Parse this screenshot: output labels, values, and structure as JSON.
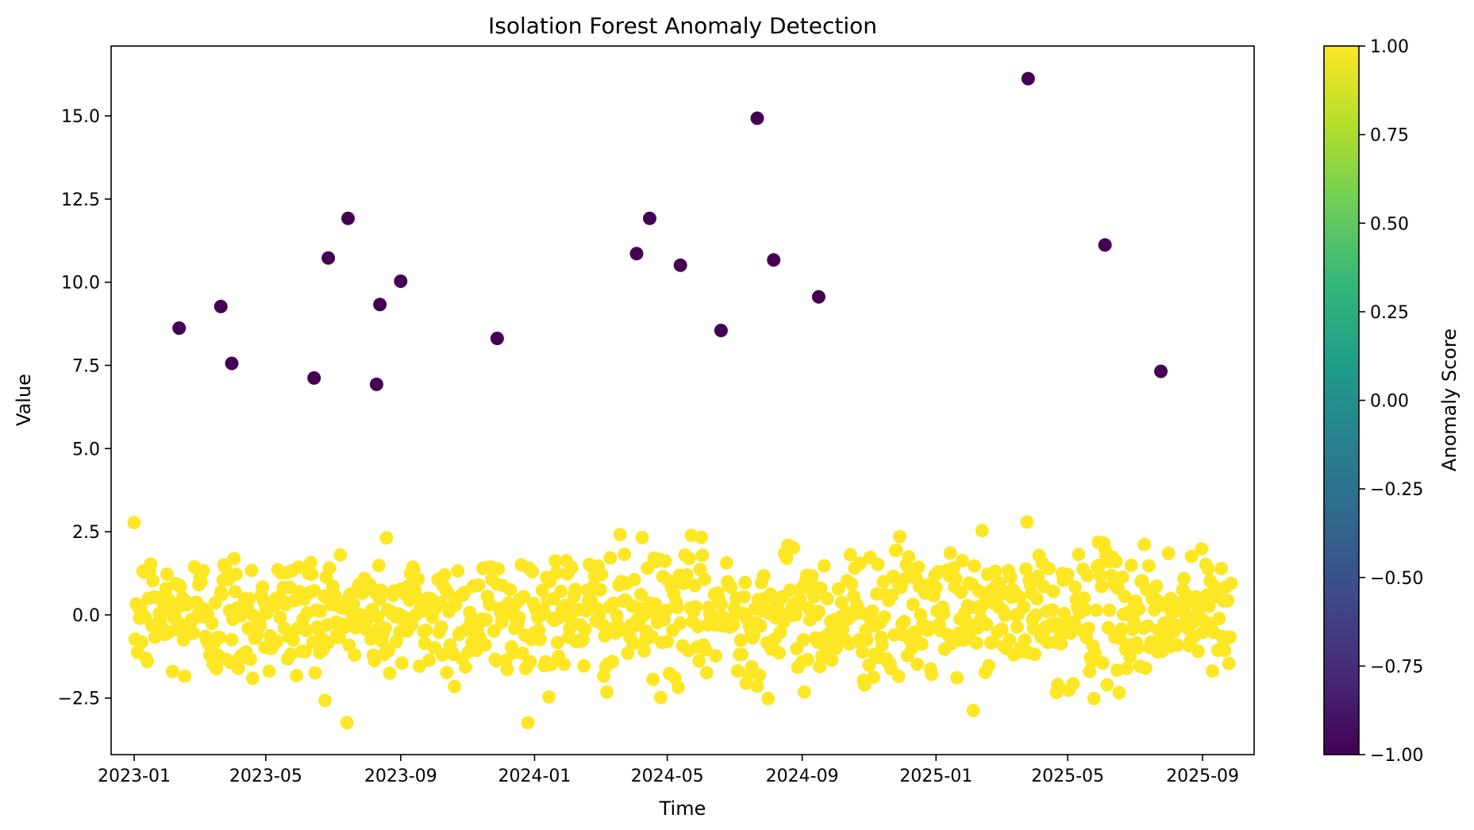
{
  "chart_data": {
    "type": "scatter",
    "title": "Isolation Forest Anomaly Detection",
    "xlabel": "Time",
    "ylabel": "Value",
    "x_tick_labels": [
      "2023-01",
      "2023-05",
      "2023-09",
      "2024-01",
      "2024-05",
      "2024-09",
      "2025-01",
      "2025-05",
      "2025-09"
    ],
    "x_ticks": [
      "2023-01-01",
      "2023-05-01",
      "2023-09-01",
      "2024-01-01",
      "2024-05-01",
      "2024-09-01",
      "2025-01-01",
      "2025-05-01",
      "2025-09-01"
    ],
    "x_range": [
      "2022-12-11",
      "2025-10-18"
    ],
    "ylim": [
      -4.2,
      17.1
    ],
    "y_ticks": [
      -2.5,
      0.0,
      2.5,
      5.0,
      7.5,
      10.0,
      12.5,
      15.0
    ],
    "y_tick_labels": [
      "−2.5",
      "0.0",
      "2.5",
      "5.0",
      "7.5",
      "10.0",
      "12.5",
      "15.0"
    ],
    "colorbar": {
      "label": "Anomaly Score",
      "range": [
        -1.0,
        1.0
      ],
      "ticks": [
        1.0,
        0.75,
        0.5,
        0.25,
        0.0,
        -0.25,
        -0.5,
        -0.75,
        -1.0
      ],
      "tick_labels": [
        "1.00",
        "0.75",
        "0.50",
        "0.25",
        "0.00",
        "−0.25",
        "−0.50",
        "−0.75",
        "−1.00"
      ],
      "colormap": "viridis",
      "stops": [
        "#440154",
        "#482878",
        "#3e4989",
        "#31688e",
        "#26828e",
        "#1f9e89",
        "#35b779",
        "#6ece58",
        "#b5de2b",
        "#fde725"
      ]
    },
    "normal_color": "#fde725",
    "anomaly_color": "#440154",
    "normal_points": {
      "score": 1.0,
      "date_range": [
        "2023-01-01",
        "2025-09-27"
      ],
      "points_per_day": 1,
      "y_mean": 0.0,
      "y_std": 1.0,
      "y_min": -3.24,
      "y_max": 3.85
    },
    "anomalies": [
      {
        "x": "2023-02-11",
        "y": 8.62,
        "score": -1.0
      },
      {
        "x": "2023-03-21",
        "y": 9.27,
        "score": -1.0
      },
      {
        "x": "2023-03-31",
        "y": 7.56,
        "score": -1.0
      },
      {
        "x": "2023-06-14",
        "y": 7.12,
        "score": -1.0
      },
      {
        "x": "2023-06-27",
        "y": 10.73,
        "score": -1.0
      },
      {
        "x": "2023-07-15",
        "y": 11.92,
        "score": -1.0
      },
      {
        "x": "2023-08-10",
        "y": 6.93,
        "score": -1.0
      },
      {
        "x": "2023-08-13",
        "y": 9.33,
        "score": -1.0
      },
      {
        "x": "2023-09-01",
        "y": 10.03,
        "score": -1.0
      },
      {
        "x": "2023-11-28",
        "y": 8.31,
        "score": -1.0
      },
      {
        "x": "2024-04-03",
        "y": 10.86,
        "score": -1.0
      },
      {
        "x": "2024-04-15",
        "y": 11.92,
        "score": -1.0
      },
      {
        "x": "2024-05-13",
        "y": 10.51,
        "score": -1.0
      },
      {
        "x": "2024-06-19",
        "y": 8.55,
        "score": -1.0
      },
      {
        "x": "2024-07-22",
        "y": 14.93,
        "score": -1.0
      },
      {
        "x": "2024-08-06",
        "y": 10.67,
        "score": -1.0
      },
      {
        "x": "2024-09-16",
        "y": 9.56,
        "score": -1.0
      },
      {
        "x": "2025-03-26",
        "y": 16.12,
        "score": -1.0
      },
      {
        "x": "2025-06-04",
        "y": 11.12,
        "score": -1.0
      },
      {
        "x": "2025-07-25",
        "y": 7.32,
        "score": -1.0
      }
    ]
  }
}
